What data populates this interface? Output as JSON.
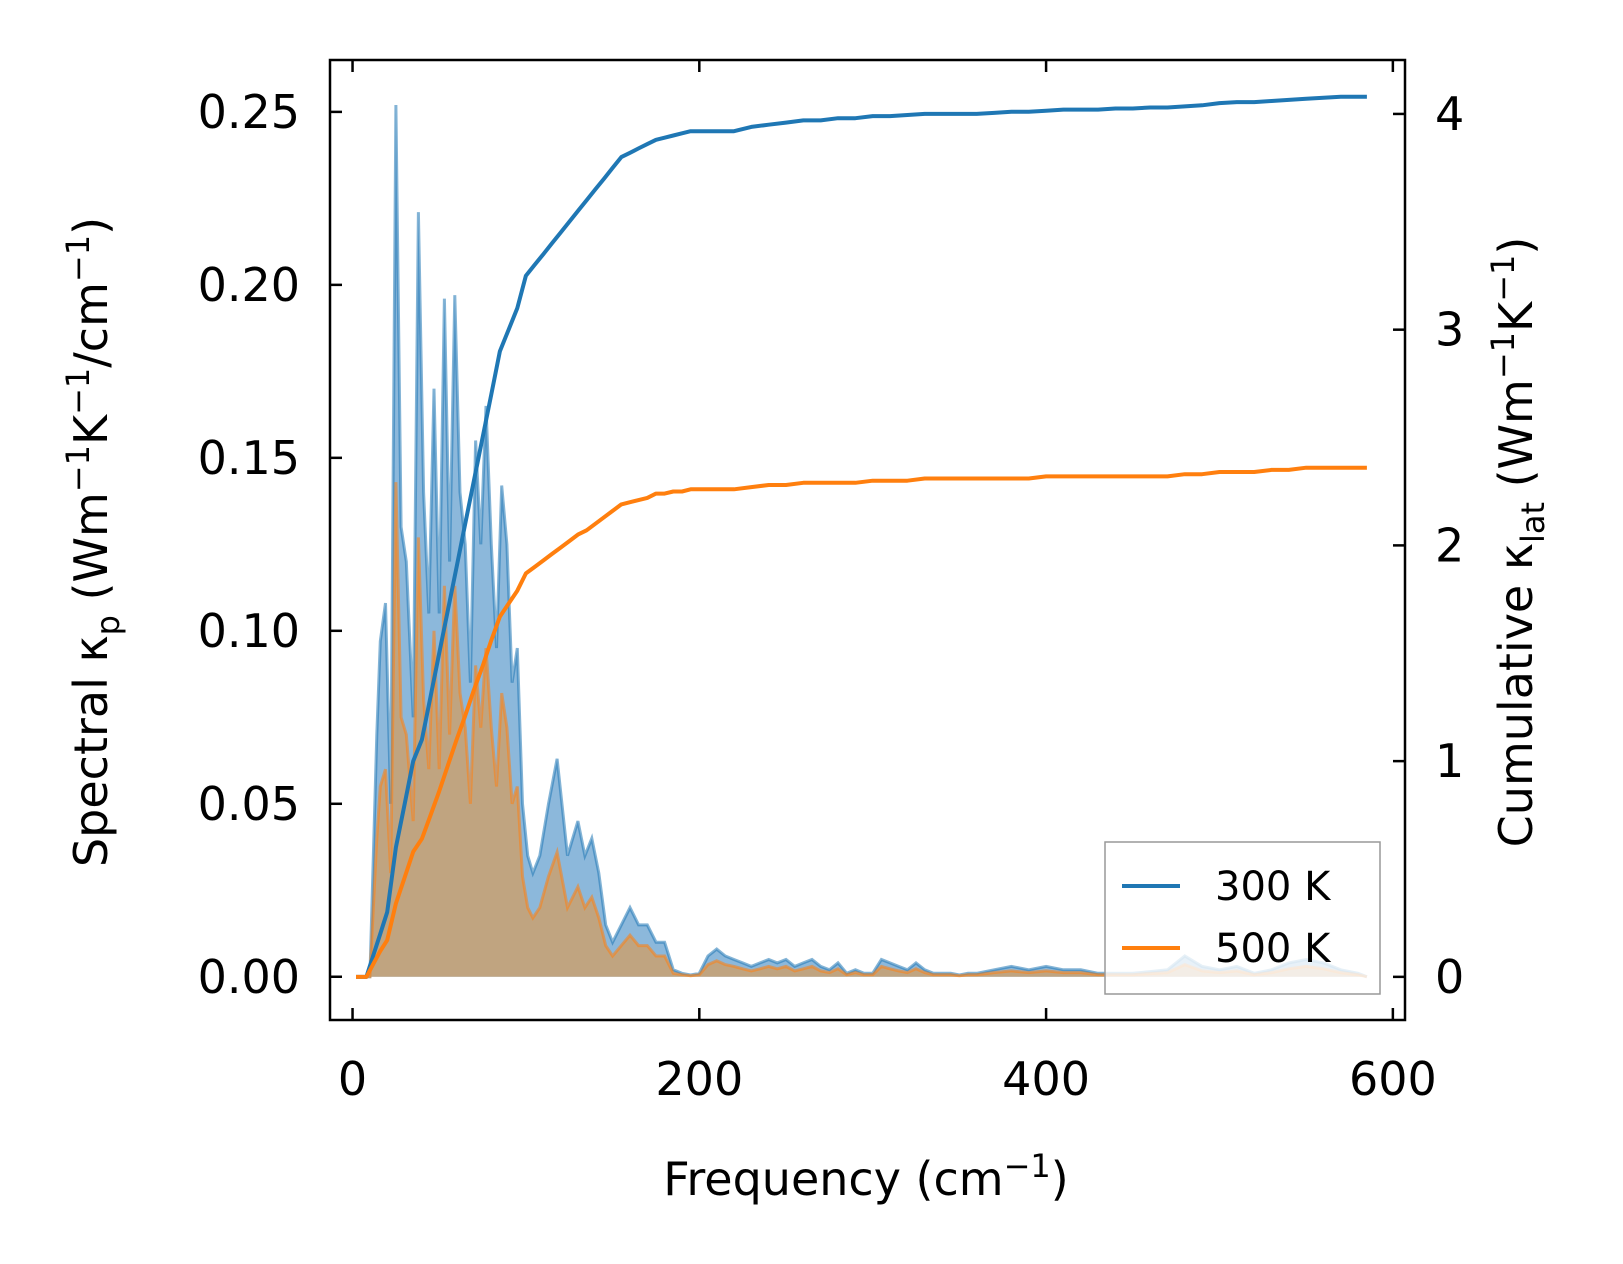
{
  "chart_data": {
    "type": "line",
    "title": "",
    "xlabel": {
      "main": "Frequency (cm",
      "sup": "−1",
      "close": ")"
    },
    "ylabel_left": {
      "pre": "Spectral κ",
      "sub": "p",
      "mid": " (Wm",
      "sup1": "−1",
      "k": "K",
      "sup2": "−1",
      "tail": "/cm",
      "sup3": "−1",
      "close": ")"
    },
    "ylabel_right": {
      "pre": "Cumulative κ",
      "sub": "lat",
      "mid": " (Wm",
      "sup1": "−1",
      "k": "K",
      "sup2": "−1",
      "close": ")"
    },
    "xlim": [
      -13,
      607
    ],
    "ylim_left": [
      -0.0125,
      0.265
    ],
    "ylim_right": [
      -0.2,
      4.25
    ],
    "x_ticks": [
      0,
      200,
      400,
      600
    ],
    "x_tick_labels": [
      "0",
      "200",
      "400",
      "600"
    ],
    "y_left_ticks": [
      0.0,
      0.05,
      0.1,
      0.15,
      0.2,
      0.25
    ],
    "y_left_tick_labels": [
      "0.00",
      "0.05",
      "0.10",
      "0.15",
      "0.20",
      "0.25"
    ],
    "y_right_ticks": [
      0,
      1,
      2,
      3,
      4
    ],
    "y_right_tick_labels": [
      "0",
      "1",
      "2",
      "3",
      "4"
    ],
    "legend": {
      "placement": "lower-right",
      "entries": [
        "300 K",
        "500 K"
      ]
    },
    "colors": {
      "s300": "#1f77b4",
      "s500": "#ff7f0e",
      "fill300": "#6fa6d2",
      "fill500": "#c9a070"
    },
    "series": [
      {
        "name": "300 K",
        "color": "#1f77b4",
        "spectral": {
          "x": [
            2,
            10,
            14,
            16,
            19,
            22,
            25,
            28,
            31,
            35,
            38,
            41,
            44,
            47,
            50,
            53,
            56,
            59,
            62,
            65,
            68,
            71,
            74,
            77,
            80,
            83,
            86,
            89,
            92,
            95,
            98,
            101,
            104,
            108,
            113,
            118,
            124,
            130,
            134,
            138,
            142,
            146,
            150,
            155,
            160,
            165,
            170,
            175,
            180,
            185,
            190,
            195,
            200,
            205,
            210,
            215,
            220,
            225,
            230,
            235,
            240,
            245,
            250,
            255,
            260,
            265,
            270,
            275,
            280,
            285,
            290,
            295,
            300,
            305,
            310,
            315,
            320,
            325,
            330,
            335,
            340,
            345,
            350,
            355,
            360,
            370,
            380,
            390,
            400,
            410,
            420,
            430,
            440,
            450,
            460,
            470,
            480,
            490,
            500,
            510,
            520,
            530,
            540,
            550,
            560,
            570,
            580,
            585
          ],
          "y": [
            0,
            0,
            0.07,
            0.097,
            0.108,
            0.05,
            0.252,
            0.13,
            0.12,
            0.075,
            0.221,
            0.14,
            0.105,
            0.17,
            0.105,
            0.196,
            0.12,
            0.197,
            0.14,
            0.125,
            0.085,
            0.155,
            0.125,
            0.165,
            0.125,
            0.095,
            0.142,
            0.125,
            0.085,
            0.095,
            0.05,
            0.035,
            0.03,
            0.035,
            0.05,
            0.063,
            0.035,
            0.045,
            0.035,
            0.04,
            0.03,
            0.015,
            0.01,
            0.015,
            0.02,
            0.015,
            0.015,
            0.01,
            0.01,
            0.002,
            0.001,
            0.0005,
            0.001,
            0.006,
            0.008,
            0.006,
            0.005,
            0.004,
            0.003,
            0.004,
            0.005,
            0.004,
            0.005,
            0.003,
            0.004,
            0.005,
            0.003,
            0.002,
            0.004,
            0.001,
            0.002,
            0.001,
            0.001,
            0.005,
            0.004,
            0.003,
            0.002,
            0.004,
            0.002,
            0.001,
            0.001,
            0.001,
            0.0005,
            0.001,
            0.001,
            0.002,
            0.003,
            0.002,
            0.003,
            0.002,
            0.002,
            0.001,
            0.001,
            0.001,
            0.0015,
            0.002,
            0.006,
            0.003,
            0.002,
            0.003,
            0.001,
            0.002,
            0.004,
            0.005,
            0.004,
            0.002,
            0.001,
            0
          ]
        },
        "cumulative": {
          "x": [
            2,
            8,
            12,
            16,
            20,
            25,
            30,
            35,
            40,
            45,
            50,
            55,
            60,
            65,
            70,
            75,
            80,
            85,
            90,
            95,
            100,
            105,
            110,
            115,
            120,
            125,
            130,
            135,
            140,
            145,
            150,
            155,
            160,
            165,
            170,
            175,
            180,
            185,
            190,
            195,
            200,
            205,
            210,
            220,
            230,
            240,
            250,
            260,
            270,
            280,
            290,
            300,
            310,
            320,
            330,
            340,
            350,
            360,
            370,
            380,
            390,
            400,
            410,
            420,
            430,
            440,
            450,
            460,
            470,
            480,
            490,
            500,
            510,
            520,
            530,
            540,
            550,
            560,
            570,
            585
          ],
          "y": [
            0,
            0,
            0.1,
            0.2,
            0.3,
            0.6,
            0.8,
            1.0,
            1.1,
            1.3,
            1.5,
            1.7,
            1.9,
            2.1,
            2.3,
            2.5,
            2.7,
            2.9,
            3.0,
            3.1,
            3.25,
            3.3,
            3.35,
            3.4,
            3.45,
            3.5,
            3.55,
            3.6,
            3.65,
            3.7,
            3.75,
            3.8,
            3.82,
            3.84,
            3.86,
            3.88,
            3.89,
            3.9,
            3.91,
            3.92,
            3.92,
            3.92,
            3.92,
            3.92,
            3.94,
            3.95,
            3.96,
            3.97,
            3.97,
            3.98,
            3.98,
            3.99,
            3.99,
            3.995,
            4.0,
            4.0,
            4.0,
            4.0,
            4.005,
            4.01,
            4.01,
            4.015,
            4.02,
            4.02,
            4.02,
            4.025,
            4.025,
            4.03,
            4.03,
            4.035,
            4.04,
            4.05,
            4.055,
            4.055,
            4.06,
            4.065,
            4.07,
            4.075,
            4.08,
            4.08
          ]
        }
      },
      {
        "name": "500 K",
        "color": "#ff7f0e",
        "spectral": {
          "x": [
            2,
            10,
            14,
            16,
            19,
            22,
            25,
            28,
            31,
            35,
            38,
            41,
            44,
            47,
            50,
            53,
            56,
            59,
            62,
            65,
            68,
            71,
            74,
            77,
            80,
            83,
            86,
            89,
            92,
            95,
            98,
            101,
            104,
            108,
            113,
            118,
            124,
            130,
            134,
            138,
            142,
            146,
            150,
            155,
            160,
            165,
            170,
            175,
            180,
            185,
            190,
            195,
            200,
            205,
            210,
            215,
            220,
            225,
            230,
            235,
            240,
            245,
            250,
            255,
            260,
            265,
            270,
            275,
            280,
            285,
            290,
            295,
            300,
            305,
            310,
            315,
            320,
            325,
            330,
            335,
            340,
            345,
            350,
            355,
            360,
            370,
            380,
            390,
            400,
            410,
            420,
            430,
            440,
            450,
            460,
            470,
            480,
            490,
            500,
            510,
            520,
            530,
            540,
            550,
            560,
            570,
            580,
            585
          ],
          "y": [
            0,
            0,
            0.04,
            0.055,
            0.06,
            0.03,
            0.143,
            0.075,
            0.07,
            0.045,
            0.127,
            0.08,
            0.06,
            0.1,
            0.06,
            0.113,
            0.07,
            0.113,
            0.082,
            0.072,
            0.05,
            0.09,
            0.072,
            0.095,
            0.072,
            0.055,
            0.082,
            0.072,
            0.05,
            0.055,
            0.029,
            0.02,
            0.017,
            0.02,
            0.029,
            0.036,
            0.02,
            0.026,
            0.02,
            0.023,
            0.017,
            0.009,
            0.006,
            0.009,
            0.012,
            0.009,
            0.009,
            0.006,
            0.006,
            0.001,
            0.0006,
            0.0003,
            0.0006,
            0.0035,
            0.0046,
            0.0035,
            0.003,
            0.0023,
            0.0017,
            0.0023,
            0.003,
            0.0023,
            0.003,
            0.0017,
            0.0023,
            0.003,
            0.0017,
            0.0012,
            0.0023,
            0.0006,
            0.0012,
            0.0006,
            0.0006,
            0.003,
            0.0023,
            0.0017,
            0.0012,
            0.0023,
            0.0012,
            0.0006,
            0.0006,
            0.0006,
            0.0003,
            0.0006,
            0.0006,
            0.0012,
            0.0017,
            0.0012,
            0.0017,
            0.0012,
            0.0012,
            0.0006,
            0.0006,
            0.0006,
            0.0009,
            0.0012,
            0.0035,
            0.0017,
            0.0012,
            0.0017,
            0.0006,
            0.0012,
            0.0023,
            0.003,
            0.0023,
            0.0012,
            0.0006,
            0
          ]
        },
        "cumulative": {
          "x": [
            2,
            8,
            12,
            16,
            20,
            25,
            30,
            35,
            40,
            45,
            50,
            55,
            60,
            65,
            70,
            75,
            80,
            85,
            90,
            95,
            100,
            105,
            110,
            115,
            120,
            125,
            130,
            135,
            140,
            145,
            150,
            155,
            160,
            165,
            170,
            175,
            180,
            185,
            190,
            195,
            200,
            205,
            210,
            220,
            230,
            240,
            250,
            260,
            270,
            280,
            290,
            300,
            310,
            320,
            330,
            340,
            350,
            360,
            370,
            380,
            390,
            400,
            410,
            420,
            430,
            440,
            450,
            460,
            470,
            480,
            490,
            500,
            510,
            520,
            530,
            540,
            550,
            560,
            570,
            585
          ],
          "y": [
            0,
            0,
            0.06,
            0.12,
            0.17,
            0.34,
            0.46,
            0.58,
            0.64,
            0.75,
            0.86,
            0.98,
            1.1,
            1.21,
            1.33,
            1.44,
            1.56,
            1.67,
            1.73,
            1.79,
            1.87,
            1.9,
            1.93,
            1.96,
            1.99,
            2.02,
            2.05,
            2.07,
            2.1,
            2.13,
            2.16,
            2.19,
            2.2,
            2.21,
            2.22,
            2.24,
            2.24,
            2.25,
            2.25,
            2.26,
            2.26,
            2.26,
            2.26,
            2.26,
            2.27,
            2.28,
            2.28,
            2.29,
            2.29,
            2.29,
            2.29,
            2.3,
            2.3,
            2.3,
            2.31,
            2.31,
            2.31,
            2.31,
            2.31,
            2.31,
            2.31,
            2.32,
            2.32,
            2.32,
            2.32,
            2.32,
            2.32,
            2.32,
            2.32,
            2.33,
            2.33,
            2.34,
            2.34,
            2.34,
            2.35,
            2.35,
            2.36,
            2.36,
            2.36,
            2.36
          ]
        }
      }
    ]
  }
}
